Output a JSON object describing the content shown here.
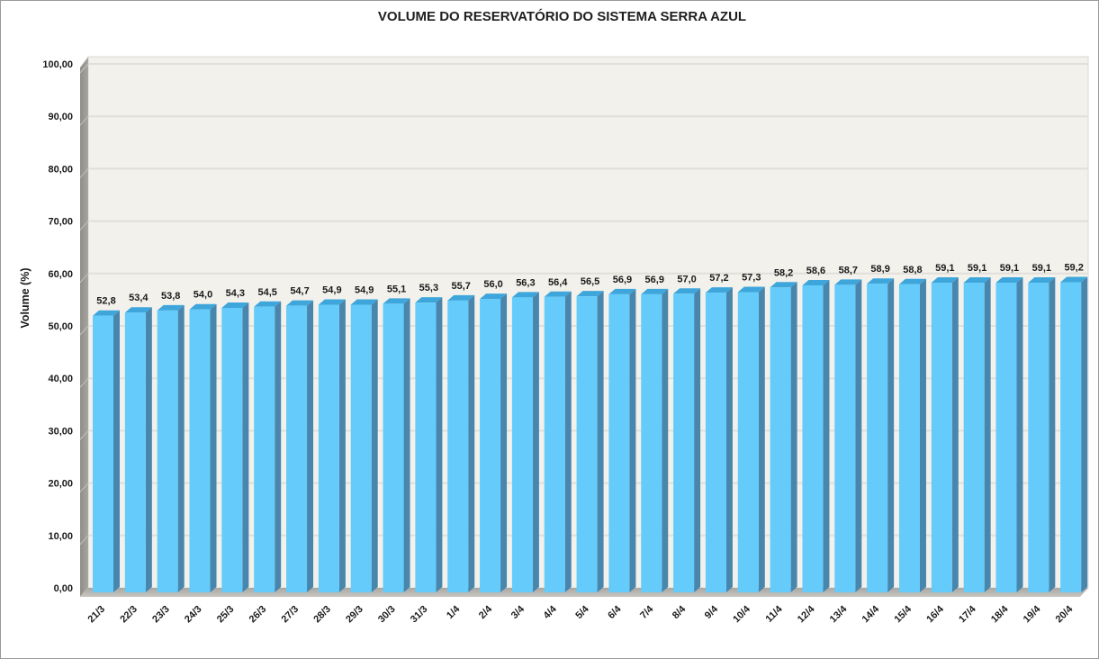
{
  "chart_data": {
    "type": "bar",
    "title": "VOLUME DO RESERVATÓRIO DO SISTEMA SERRA AZUL",
    "xlabel": "",
    "ylabel": "Volume (%)",
    "ylim": [
      0,
      100
    ],
    "y_tick_step": 10,
    "grid": true,
    "legend": "none",
    "style_3d": true,
    "data_labels_shown": true,
    "decimal_separator": "comma",
    "categories": [
      "21/3",
      "22/3",
      "23/3",
      "24/3",
      "25/3",
      "26/3",
      "27/3",
      "28/3",
      "29/3",
      "30/3",
      "31/3",
      "1/4",
      "2/4",
      "3/4",
      "4/4",
      "5/4",
      "6/4",
      "7/4",
      "8/4",
      "9/4",
      "10/4",
      "11/4",
      "12/4",
      "13/4",
      "14/4",
      "15/4",
      "16/4",
      "17/4",
      "18/4",
      "19/4",
      "20/4"
    ],
    "values": [
      52.8,
      53.4,
      53.8,
      54.0,
      54.3,
      54.5,
      54.7,
      54.9,
      54.9,
      55.1,
      55.3,
      55.7,
      56.0,
      56.3,
      56.4,
      56.5,
      56.9,
      56.9,
      57.0,
      57.2,
      57.3,
      58.2,
      58.6,
      58.7,
      58.9,
      58.8,
      59.1,
      59.1,
      59.1,
      59.1,
      59.2
    ],
    "value_labels": [
      "52,8",
      "53,4",
      "53,8",
      "54,0",
      "54,3",
      "54,5",
      "54,7",
      "54,9",
      "54,9",
      "55,1",
      "55,3",
      "55,7",
      "56,0",
      "56,3",
      "56,4",
      "56,5",
      "56,9",
      "56,9",
      "57,0",
      "57,2",
      "57,3",
      "58,2",
      "58,6",
      "58,7",
      "58,9",
      "58,8",
      "59,1",
      "59,1",
      "59,1",
      "59,1",
      "59,2"
    ],
    "y_tick_labels": [
      "0,00",
      "10,00",
      "20,00",
      "30,00",
      "40,00",
      "50,00",
      "60,00",
      "70,00",
      "80,00",
      "90,00",
      "100,00"
    ],
    "colors": {
      "bar_front": "#64CBFA",
      "bar_top": "#3EA6DB",
      "bar_side": "#4886AD",
      "back_wall": "#F2F1EC",
      "back_wall_edge": "#DBDAD5",
      "gridline": "#E0DFDA",
      "wall_dark": "#8F8D88",
      "wall_light": "#A8A6A0",
      "wall_notch": "#C2C0BB",
      "floor_dark": "#A9A7A1",
      "floor_light": "#C9C7C2",
      "text": "#1A1A1A",
      "frame_border": "#9A9A9A"
    }
  }
}
